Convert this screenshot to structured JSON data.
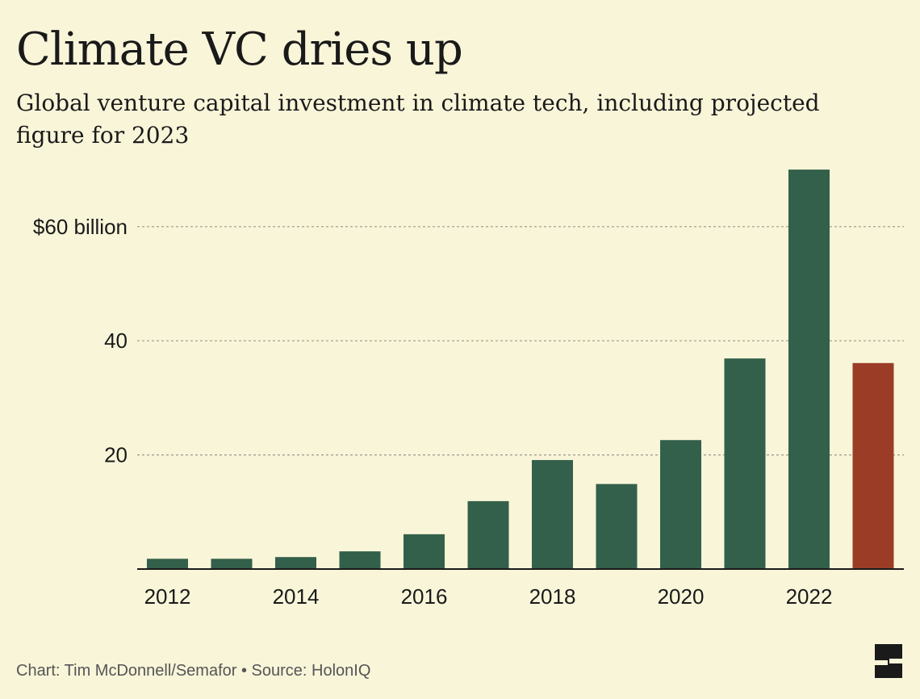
{
  "header": {
    "title": "Climate VC dries up",
    "subtitle": "Global venture capital investment in climate tech, including projected figure for 2023"
  },
  "footer": {
    "credit": "Chart: Tim McDonnell/Semafor • Source: HolonIQ"
  },
  "logo": {
    "icon": "semafor-logo-icon"
  },
  "colors": {
    "background": "#f9f5d9",
    "bar": "#33604a",
    "projected_bar": "#9b3d26",
    "grid": "#9a9a8a",
    "axis": "#1a1a1a",
    "text": "#1a1a1a"
  },
  "chart_data": {
    "type": "bar",
    "title": "Climate VC dries up",
    "subtitle": "Global venture capital investment in climate tech, including projected figure for 2023",
    "xlabel": "",
    "ylabel": "",
    "categories": [
      "2012",
      "2013",
      "2014",
      "2015",
      "2016",
      "2017",
      "2018",
      "2019",
      "2020",
      "2021",
      "2022",
      "2023"
    ],
    "x_tick_labels": [
      "2012",
      "2014",
      "2016",
      "2018",
      "2020",
      "2022"
    ],
    "values": [
      1.8,
      1.8,
      2.1,
      3.1,
      6.1,
      11.9,
      19.1,
      14.9,
      22.6,
      36.9,
      70.0,
      36.1
    ],
    "projected": [
      false,
      false,
      false,
      false,
      false,
      false,
      false,
      false,
      false,
      false,
      false,
      true
    ],
    "y_ticks": [
      {
        "value": 20,
        "label": "20"
      },
      {
        "value": 40,
        "label": "40"
      },
      {
        "value": 60,
        "label": "$60 billion"
      }
    ],
    "ylim": [
      0,
      70
    ],
    "grid": true,
    "legend": "none"
  }
}
